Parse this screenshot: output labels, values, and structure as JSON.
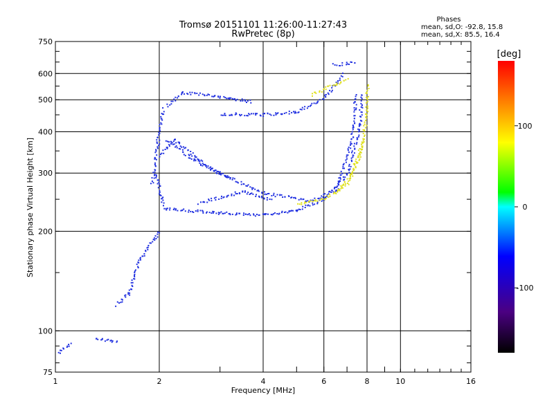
{
  "chart_data": {
    "type": "scatter",
    "title": "Tromsø 20151101 11:26:00-11:27:43",
    "subtitle": "RwPretec (8p)",
    "info": {
      "heading": "Phases",
      "line_o": "mean, sd,O: -92.8, 15.8",
      "line_x": "mean, sd,X: 85.5, 16.4"
    },
    "xlabel": "Frequency [MHz]",
    "ylabel": "Stationary phase Virtual Height [km]",
    "xscale": "log",
    "yscale": "log",
    "xlim": [
      1,
      16
    ],
    "ylim": [
      75,
      750
    ],
    "grid": true,
    "xtick_labels": [
      "1",
      "2",
      "4",
      "6",
      "8",
      "10",
      "16"
    ],
    "ytick_labels": [
      "75",
      "100",
      "200",
      "300",
      "400",
      "500",
      "600",
      "750"
    ],
    "colorbar": {
      "label": "[deg]",
      "range": [
        -180,
        180
      ],
      "tick_labels": [
        "100",
        "0",
        "-100"
      ],
      "colors": [
        "#000000",
        "#4b0082",
        "#0000ff",
        "#00ffff",
        "#00ff00",
        "#ffff00",
        "#ff8000",
        "#ff0000"
      ]
    },
    "series": [
      {
        "color": "#2030e0",
        "phase": -95,
        "segments": [
          {
            "f1": 1.5,
            "h1": 120,
            "f2": 1.62,
            "h2": 130
          },
          {
            "f1": 1.62,
            "h1": 130,
            "f2": 1.75,
            "h2": 165
          },
          {
            "f1": 1.75,
            "h1": 165,
            "f2": 1.92,
            "h2": 190
          },
          {
            "f1": 1.92,
            "h1": 190,
            "f2": 2.0,
            "h2": 200
          },
          {
            "f1": 1.9,
            "h1": 280,
            "f2": 1.98,
            "h2": 380
          },
          {
            "f1": 1.96,
            "h1": 380,
            "f2": 2.05,
            "h2": 470
          },
          {
            "f1": 1.95,
            "h1": 300,
            "f2": 2.05,
            "h2": 240
          },
          {
            "f1": 2.05,
            "h1": 235,
            "f2": 3.0,
            "h2": 228
          },
          {
            "f1": 3.0,
            "h1": 228,
            "f2": 4.0,
            "h2": 225
          },
          {
            "f1": 4.0,
            "h1": 225,
            "f2": 5.0,
            "h2": 232
          },
          {
            "f1": 5.0,
            "h1": 232,
            "f2": 6.0,
            "h2": 252
          },
          {
            "f1": 6.0,
            "h1": 252,
            "f2": 7.0,
            "h2": 300
          },
          {
            "f1": 7.0,
            "h1": 300,
            "f2": 7.6,
            "h2": 420
          },
          {
            "f1": 7.6,
            "h1": 420,
            "f2": 7.7,
            "h2": 520
          },
          {
            "f1": 2.1,
            "h1": 380,
            "f2": 2.5,
            "h2": 330
          },
          {
            "f1": 2.5,
            "h1": 330,
            "f2": 3.0,
            "h2": 300
          },
          {
            "f1": 3.0,
            "h1": 300,
            "f2": 4.0,
            "h2": 262
          },
          {
            "f1": 4.0,
            "h1": 262,
            "f2": 5.5,
            "h2": 248
          },
          {
            "f1": 5.5,
            "h1": 248,
            "f2": 6.5,
            "h2": 268
          },
          {
            "f1": 6.5,
            "h1": 268,
            "f2": 7.2,
            "h2": 380
          },
          {
            "f1": 7.2,
            "h1": 380,
            "f2": 7.4,
            "h2": 520
          },
          {
            "f1": 3.0,
            "h1": 455,
            "f2": 4.0,
            "h2": 452
          },
          {
            "f1": 4.0,
            "h1": 452,
            "f2": 5.0,
            "h2": 462
          },
          {
            "f1": 5.0,
            "h1": 462,
            "f2": 6.0,
            "h2": 510
          },
          {
            "f1": 6.0,
            "h1": 510,
            "f2": 6.8,
            "h2": 600
          },
          {
            "f1": 2.3,
            "h1": 530,
            "f2": 3.3,
            "h2": 505
          },
          {
            "f1": 3.3,
            "h1": 505,
            "f2": 3.7,
            "h2": 495
          },
          {
            "f1": 2.1,
            "h1": 480,
            "f2": 2.3,
            "h2": 520
          },
          {
            "f1": 2.0,
            "h1": 340,
            "f2": 2.2,
            "h2": 380
          },
          {
            "f1": 2.2,
            "h1": 380,
            "f2": 2.8,
            "h2": 310
          },
          {
            "f1": 2.8,
            "h1": 310,
            "f2": 3.2,
            "h2": 290
          },
          {
            "f1": 2.6,
            "h1": 245,
            "f2": 3.5,
            "h2": 265
          },
          {
            "f1": 3.5,
            "h1": 265,
            "f2": 4.2,
            "h2": 250
          },
          {
            "f1": 1.02,
            "h1": 86,
            "f2": 1.1,
            "h2": 92
          },
          {
            "f1": 1.3,
            "h1": 95,
            "f2": 1.5,
            "h2": 93
          },
          {
            "f1": 6.4,
            "h1": 640,
            "f2": 7.4,
            "h2": 650
          }
        ]
      },
      {
        "color": "#e0e020",
        "phase": 85,
        "segments": [
          {
            "f1": 5.0,
            "h1": 242,
            "f2": 6.0,
            "h2": 252
          },
          {
            "f1": 6.0,
            "h1": 252,
            "f2": 7.0,
            "h2": 280
          },
          {
            "f1": 7.0,
            "h1": 280,
            "f2": 7.6,
            "h2": 340
          },
          {
            "f1": 7.6,
            "h1": 340,
            "f2": 7.95,
            "h2": 450
          },
          {
            "f1": 7.95,
            "h1": 450,
            "f2": 8.0,
            "h2": 560
          },
          {
            "f1": 6.5,
            "h1": 262,
            "f2": 7.2,
            "h2": 300
          },
          {
            "f1": 7.2,
            "h1": 300,
            "f2": 7.8,
            "h2": 380
          },
          {
            "f1": 5.5,
            "h1": 520,
            "f2": 7.0,
            "h2": 580
          }
        ]
      }
    ]
  }
}
